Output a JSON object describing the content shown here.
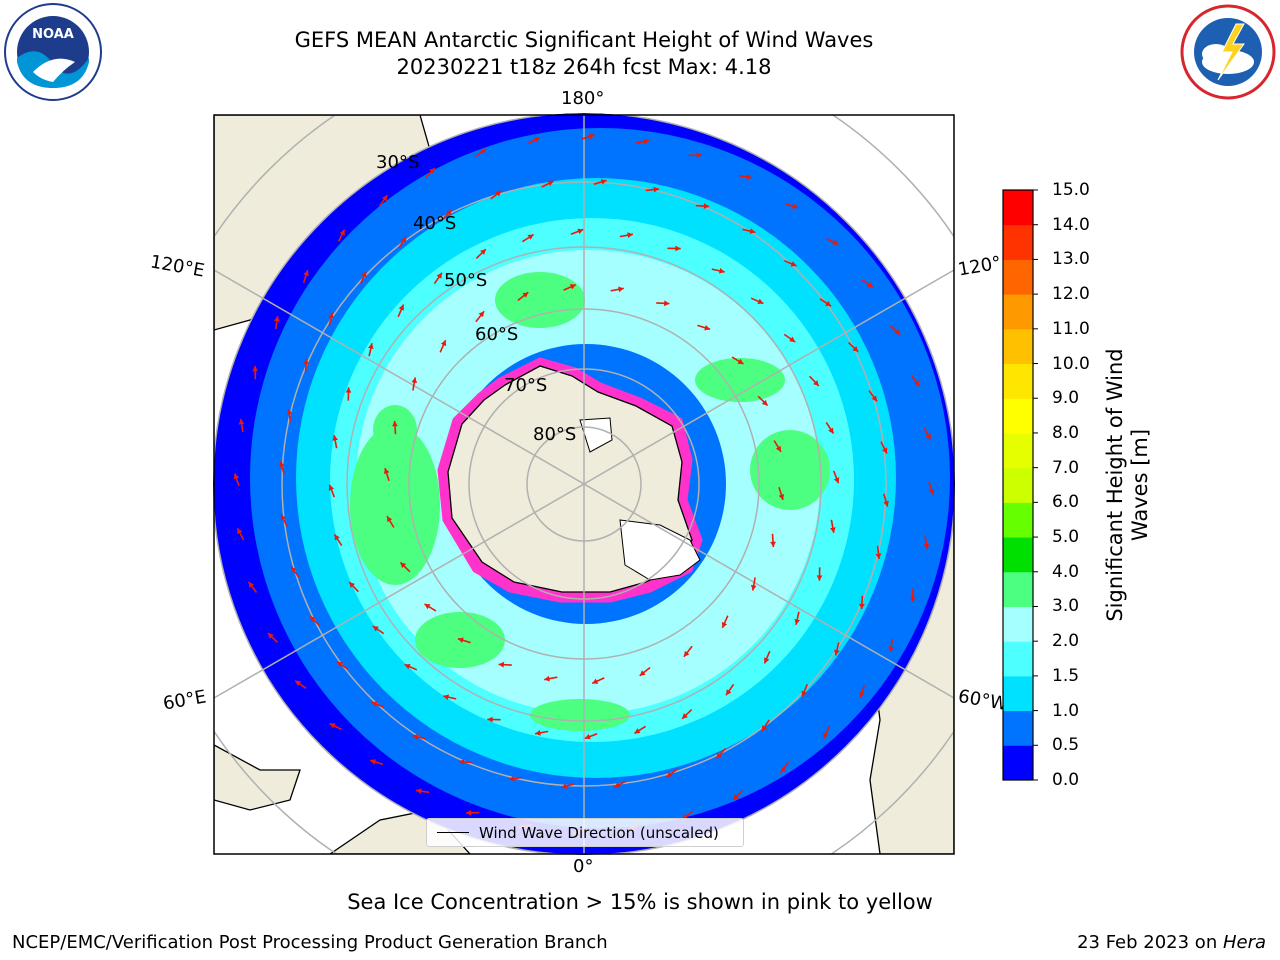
{
  "title_line1": "GEFS MEAN Antarctic Significant Height of Wind Waves",
  "title_line2": "20230221 t18z 264h fcst   Max: 4.18",
  "logos": {
    "left": "noaa-logo",
    "left_text": "NOAA",
    "right": "nws-logo"
  },
  "lon_labels": {
    "top": "180°",
    "bottom": "0°",
    "left_upper": "120°E",
    "left_lower": "60°E",
    "right_upper": "120°",
    "right_lower": "60°W"
  },
  "lat_labels": [
    "30°S",
    "40°S",
    "50°S",
    "60°S",
    "70°S",
    "80°S"
  ],
  "legend_label": "Wind Wave Direction (unscaled)",
  "colorbar": {
    "label": "Significant Height of Wind Waves [m]",
    "ticks": [
      "0.0",
      "0.5",
      "1.0",
      "1.5",
      "2.0",
      "3.0",
      "4.0",
      "5.0",
      "6.0",
      "7.0",
      "8.0",
      "9.0",
      "10.0",
      "11.0",
      "12.0",
      "13.0",
      "14.0",
      "15.0"
    ],
    "colors": [
      "#0000ff",
      "#0073ff",
      "#00e0ff",
      "#4dffff",
      "#a6ffff",
      "#4dff80",
      "#00e000",
      "#66ff00",
      "#ccff00",
      "#e6ff00",
      "#ffff00",
      "#ffe600",
      "#ffc000",
      "#ff9900",
      "#ff6600",
      "#ff3300",
      "#ff0000"
    ]
  },
  "map_colors": {
    "land": "#efecdb",
    "ice_edge": "#ff33cc",
    "arrow": "#e81a0c",
    "grid": "#b0b0b0"
  },
  "sea_ice_note": "Sea Ice Concentration > 15% is shown in pink to yellow",
  "credit": "NCEP/EMC/Verification Post Processing Product Generation Branch",
  "date_prefix": "23 Feb 2023 on ",
  "date_host": "Hera"
}
